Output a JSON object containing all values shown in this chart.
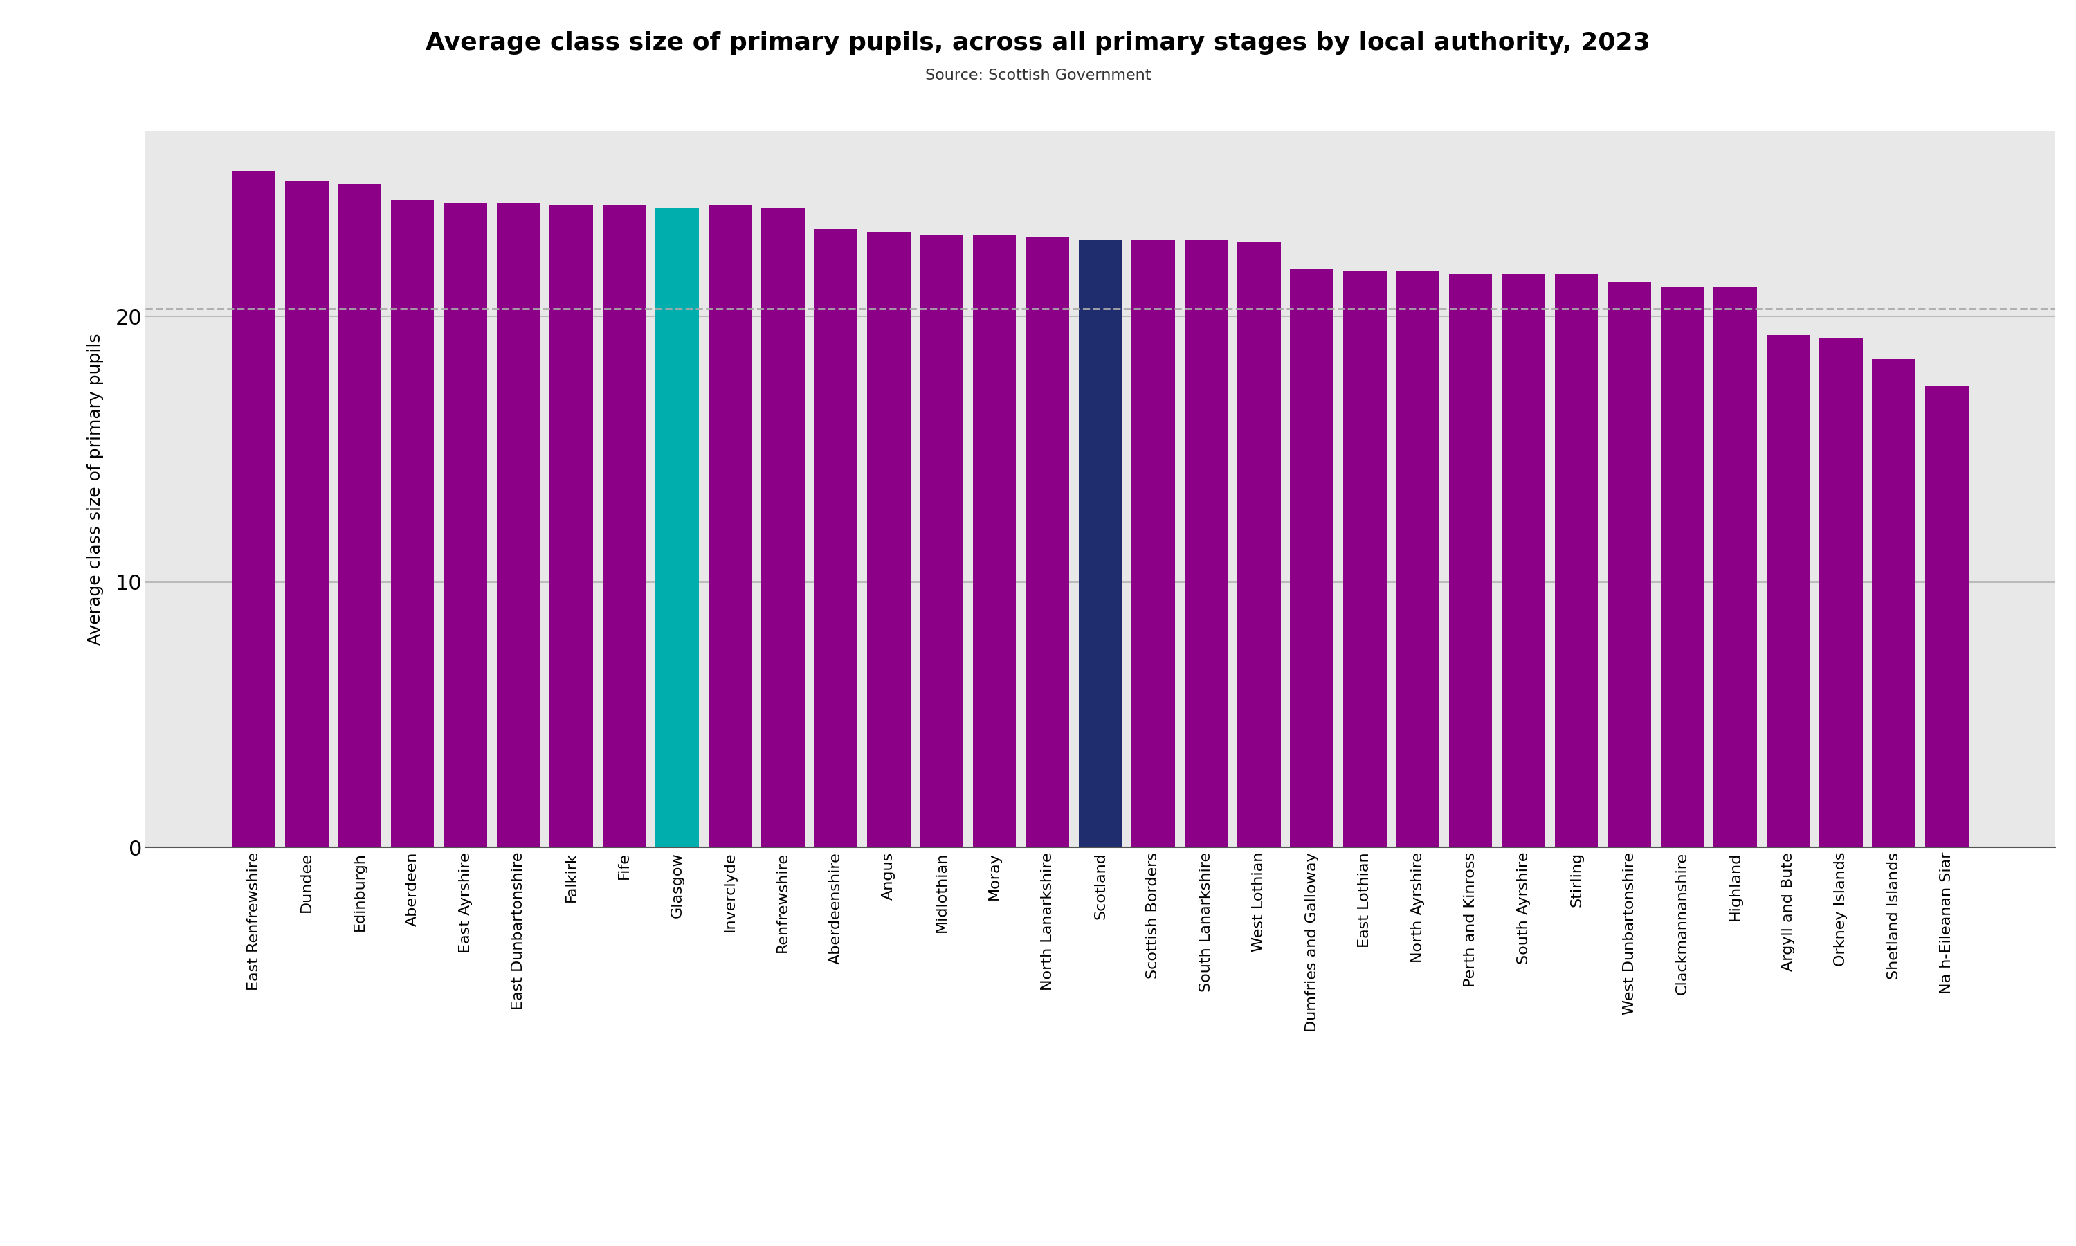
{
  "title": "Average class size of primary pupils, across all primary stages by local authority, 2023",
  "subtitle": "Source: Scottish Government",
  "ylabel": "Average class size of primary pupils",
  "categories": [
    "East Renfrewshire",
    "Dundee",
    "Edinburgh",
    "Aberdeen",
    "East Ayrshire",
    "East Dunbartonshire",
    "Falkirk",
    "Fife",
    "Glasgow",
    "Inverclyde",
    "Renfrewshire",
    "Aberdeenshire",
    "Angus",
    "Midlothian",
    "Moray",
    "North Lanarkshire",
    "Scotland",
    "Scottish Borders",
    "South Lanarkshire",
    "West Lothian",
    "Dumfries and Galloway",
    "East Lothian",
    "North Ayrshire",
    "Perth and Kinross",
    "South Ayrshire",
    "Stirling",
    "West Dunbartonshire",
    "Clackmannanshire",
    "Highland",
    "Argyll and Bute",
    "Orkney Islands",
    "Shetland Islands",
    "Na h-Eileanan Siar"
  ],
  "values": [
    25.5,
    25.1,
    25.0,
    24.4,
    24.3,
    24.3,
    24.2,
    24.2,
    24.1,
    24.2,
    24.1,
    23.3,
    23.2,
    23.1,
    23.1,
    23.0,
    22.9,
    22.9,
    22.9,
    22.8,
    21.8,
    21.7,
    21.7,
    21.6,
    21.6,
    21.6,
    21.3,
    21.1,
    21.1,
    19.3,
    19.2,
    18.4,
    17.4
  ],
  "bar_colors_map": {
    "Glasgow": "#00AEAE",
    "Scotland": "#1F2D6E",
    "default": "#8B0086"
  },
  "reference_line": 20.3,
  "reference_line_color": "#aaaaaa",
  "ylim": [
    0,
    27
  ],
  "yticks": [
    0,
    10,
    20
  ],
  "grid_color": "#bbbbbb",
  "plot_bg_color": "#e8e8e8",
  "title_fontsize": 26,
  "subtitle_fontsize": 16,
  "ylabel_fontsize": 18,
  "ytick_fontsize": 22,
  "xtick_fontsize": 16,
  "figsize": [
    30,
    18
  ]
}
